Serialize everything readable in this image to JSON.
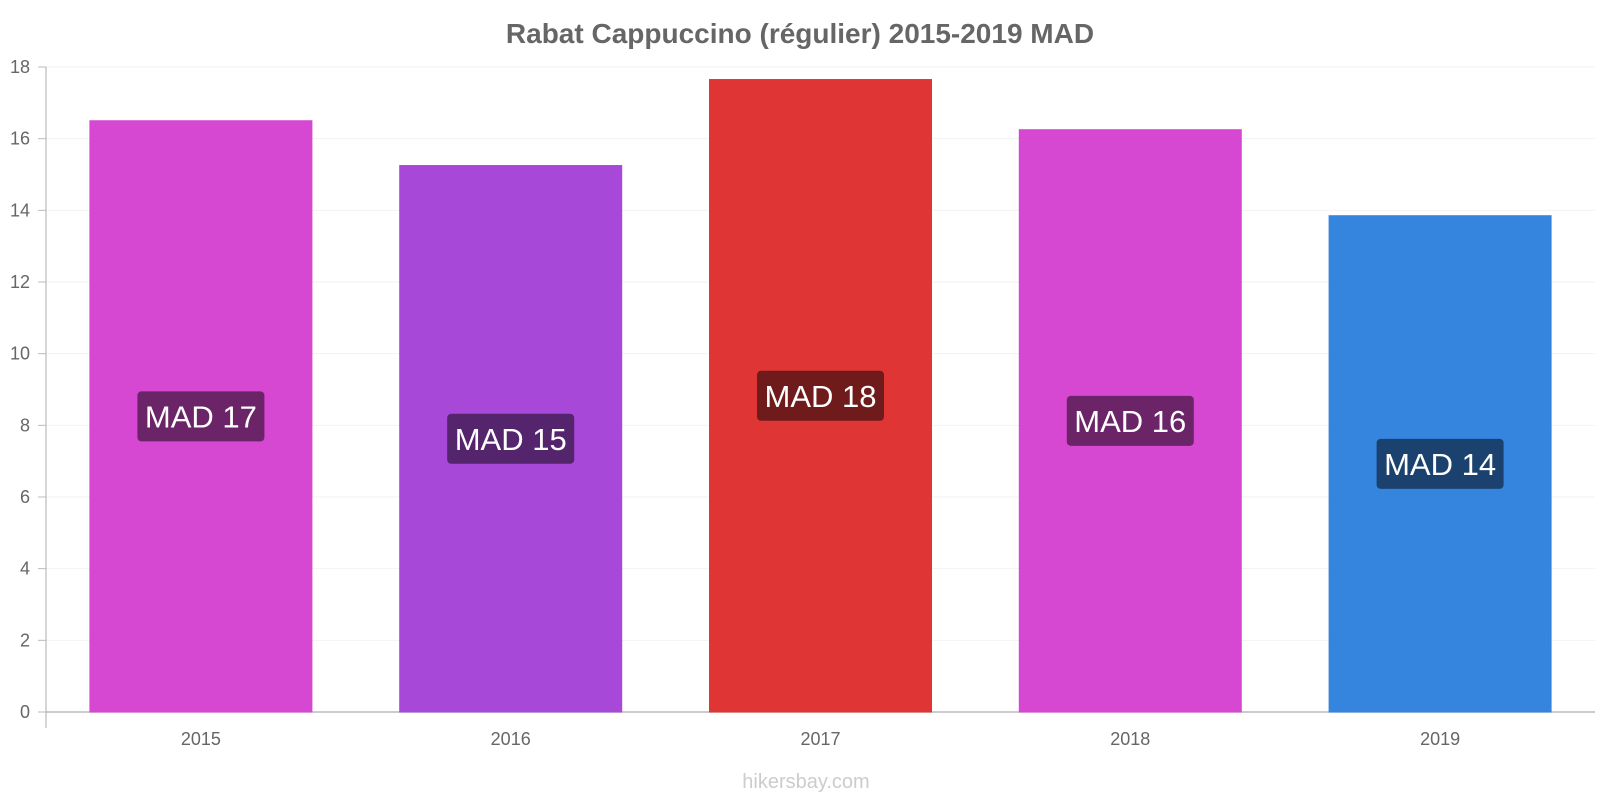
{
  "chart_data": {
    "type": "bar",
    "title": "Rabat Cappuccino (régulier) 2015-2019 MAD",
    "categories": [
      "2015",
      "2016",
      "2017",
      "2018",
      "2019"
    ],
    "values": [
      16.5,
      15.25,
      17.65,
      16.25,
      13.85
    ],
    "data_labels": [
      "MAD 17",
      "MAD 15",
      "MAD 18",
      "MAD 16",
      "MAD 14"
    ],
    "bar_colors": [
      "#d647d2",
      "#a848d9",
      "#e03535",
      "#d647d2",
      "#3584de"
    ],
    "label_box_colors": [
      "#6b2468",
      "#54246c",
      "#701b1b",
      "#6b2468",
      "#1b426f"
    ],
    "ylim": [
      0,
      18
    ],
    "yticks": [
      0,
      2,
      4,
      6,
      8,
      10,
      12,
      14,
      16,
      18
    ],
    "xlabel": "",
    "ylabel": "",
    "grid": true,
    "legend": "none"
  },
  "watermark": "hikersbay.com"
}
